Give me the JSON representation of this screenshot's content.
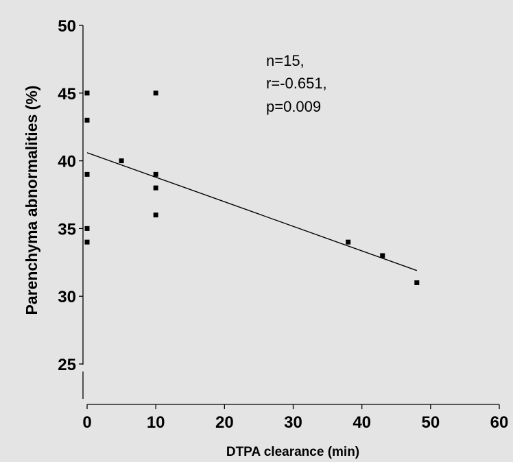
{
  "chart_data": {
    "type": "scatter",
    "title": "",
    "xlabel": "DTPA clearance (min)",
    "ylabel": "Parenchyma abnormalities (%)",
    "xlim": [
      0,
      60
    ],
    "ylim": [
      25,
      50
    ],
    "y_axis_break": true,
    "grid": false,
    "legend": "none",
    "x_ticks": [
      "0",
      "10",
      "20",
      "30",
      "40",
      "50",
      "60"
    ],
    "y_ticks": [
      "25",
      "30",
      "35",
      "40",
      "45",
      "50"
    ],
    "points": [
      {
        "x": 0,
        "y": 45
      },
      {
        "x": 0,
        "y": 43
      },
      {
        "x": 0,
        "y": 39
      },
      {
        "x": 0,
        "y": 35
      },
      {
        "x": 0,
        "y": 34
      },
      {
        "x": 5,
        "y": 40
      },
      {
        "x": 10,
        "y": 45
      },
      {
        "x": 10,
        "y": 39
      },
      {
        "x": 10,
        "y": 38
      },
      {
        "x": 10,
        "y": 36
      },
      {
        "x": 38,
        "y": 34
      },
      {
        "x": 43,
        "y": 33
      },
      {
        "x": 48,
        "y": 31
      }
    ],
    "regression_line": {
      "x": [
        0,
        48
      ],
      "y": [
        40.6,
        31.9
      ]
    },
    "annotation": [
      "n=15,",
      "r=-0.651,",
      "p=0.009"
    ],
    "colors": {
      "background": "#e4e4e4",
      "marks": "#000000"
    }
  }
}
